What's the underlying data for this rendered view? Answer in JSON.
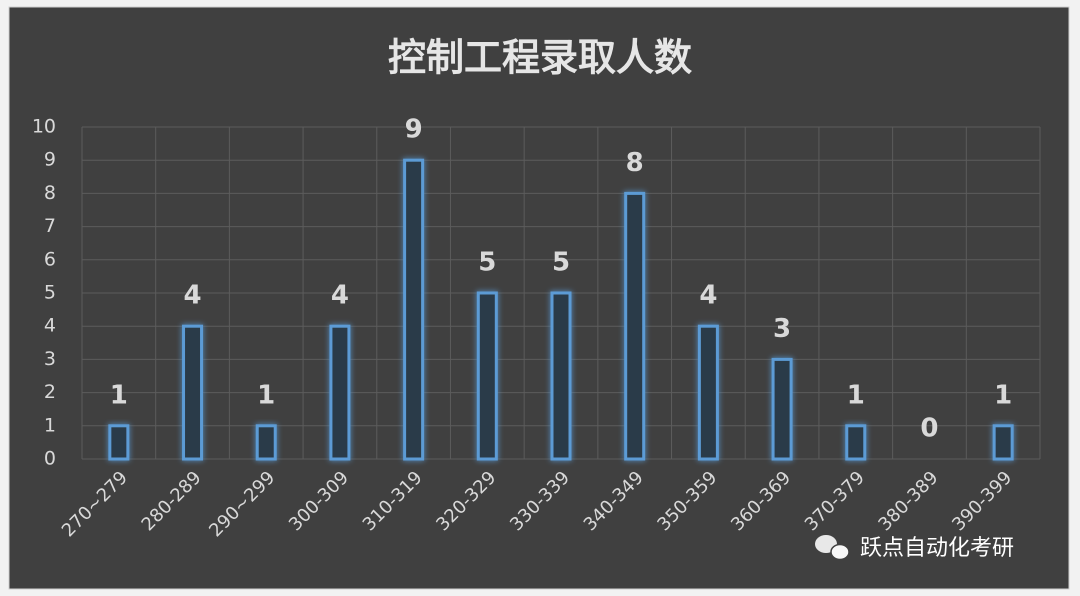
{
  "chart_data": {
    "type": "bar",
    "title": "控制工程录取人数",
    "categories": [
      "270~279",
      "280-289",
      "290~299",
      "300-309",
      "310-319",
      "320-329",
      "330-339",
      "340-349",
      "350-359",
      "360-369",
      "370-379",
      "380-389",
      "390-399"
    ],
    "values": [
      1,
      4,
      1,
      4,
      9,
      5,
      5,
      8,
      4,
      3,
      1,
      0,
      1
    ],
    "color": "#5b9bd5",
    "ylim": [
      0,
      10
    ],
    "yticks": [
      0,
      1,
      2,
      3,
      4,
      5,
      6,
      7,
      8,
      9,
      10
    ],
    "grid": true
  },
  "watermark": "跃点自动化考研"
}
